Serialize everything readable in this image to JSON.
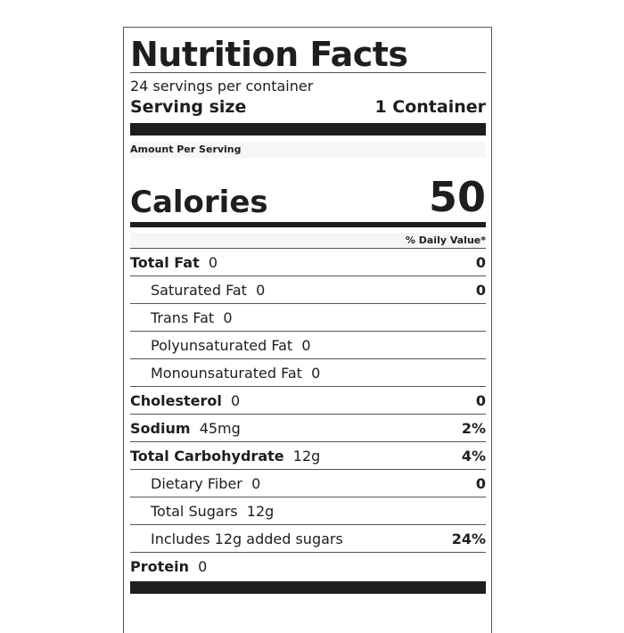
{
  "title": "Nutrition Facts",
  "servings_per_container": "24 servings per container",
  "serving_size_label": "Serving size",
  "serving_size_value": "1 Container",
  "amount_per_serving": "Amount Per Serving",
  "calories_label": "Calories",
  "calories_value": "50",
  "daily_value_header": "% Daily Value*",
  "nutrients": [
    {
      "name": "Total Fat",
      "amount": "0",
      "dv": "0",
      "bold": true
    },
    {
      "name": "Saturated Fat",
      "amount": "0",
      "dv": "0",
      "bold": false
    },
    {
      "name": "Trans Fat",
      "amount": "0",
      "dv": "",
      "bold": false
    },
    {
      "name": "Polyunsaturated Fat",
      "amount": "0",
      "dv": "",
      "bold": false
    },
    {
      "name": "Monounsaturated Fat",
      "amount": "0",
      "dv": "",
      "bold": false
    },
    {
      "name": "Cholesterol",
      "amount": "0",
      "dv": "0",
      "bold": true
    },
    {
      "name": "Sodium",
      "amount": "45mg",
      "dv": "2%",
      "bold": true
    },
    {
      "name": "Total Carbohydrate",
      "amount": "12g",
      "dv": "4%",
      "bold": true
    },
    {
      "name": "Dietary Fiber",
      "amount": "0",
      "dv": "0",
      "bold": false
    },
    {
      "name": "Total Sugars",
      "amount": "12g",
      "dv": "",
      "bold": false
    },
    {
      "name": "Includes 12g added sugars",
      "amount": "",
      "dv": "24%",
      "bold": false
    },
    {
      "name": "Protein",
      "amount": "0",
      "dv": "",
      "bold": true
    }
  ]
}
